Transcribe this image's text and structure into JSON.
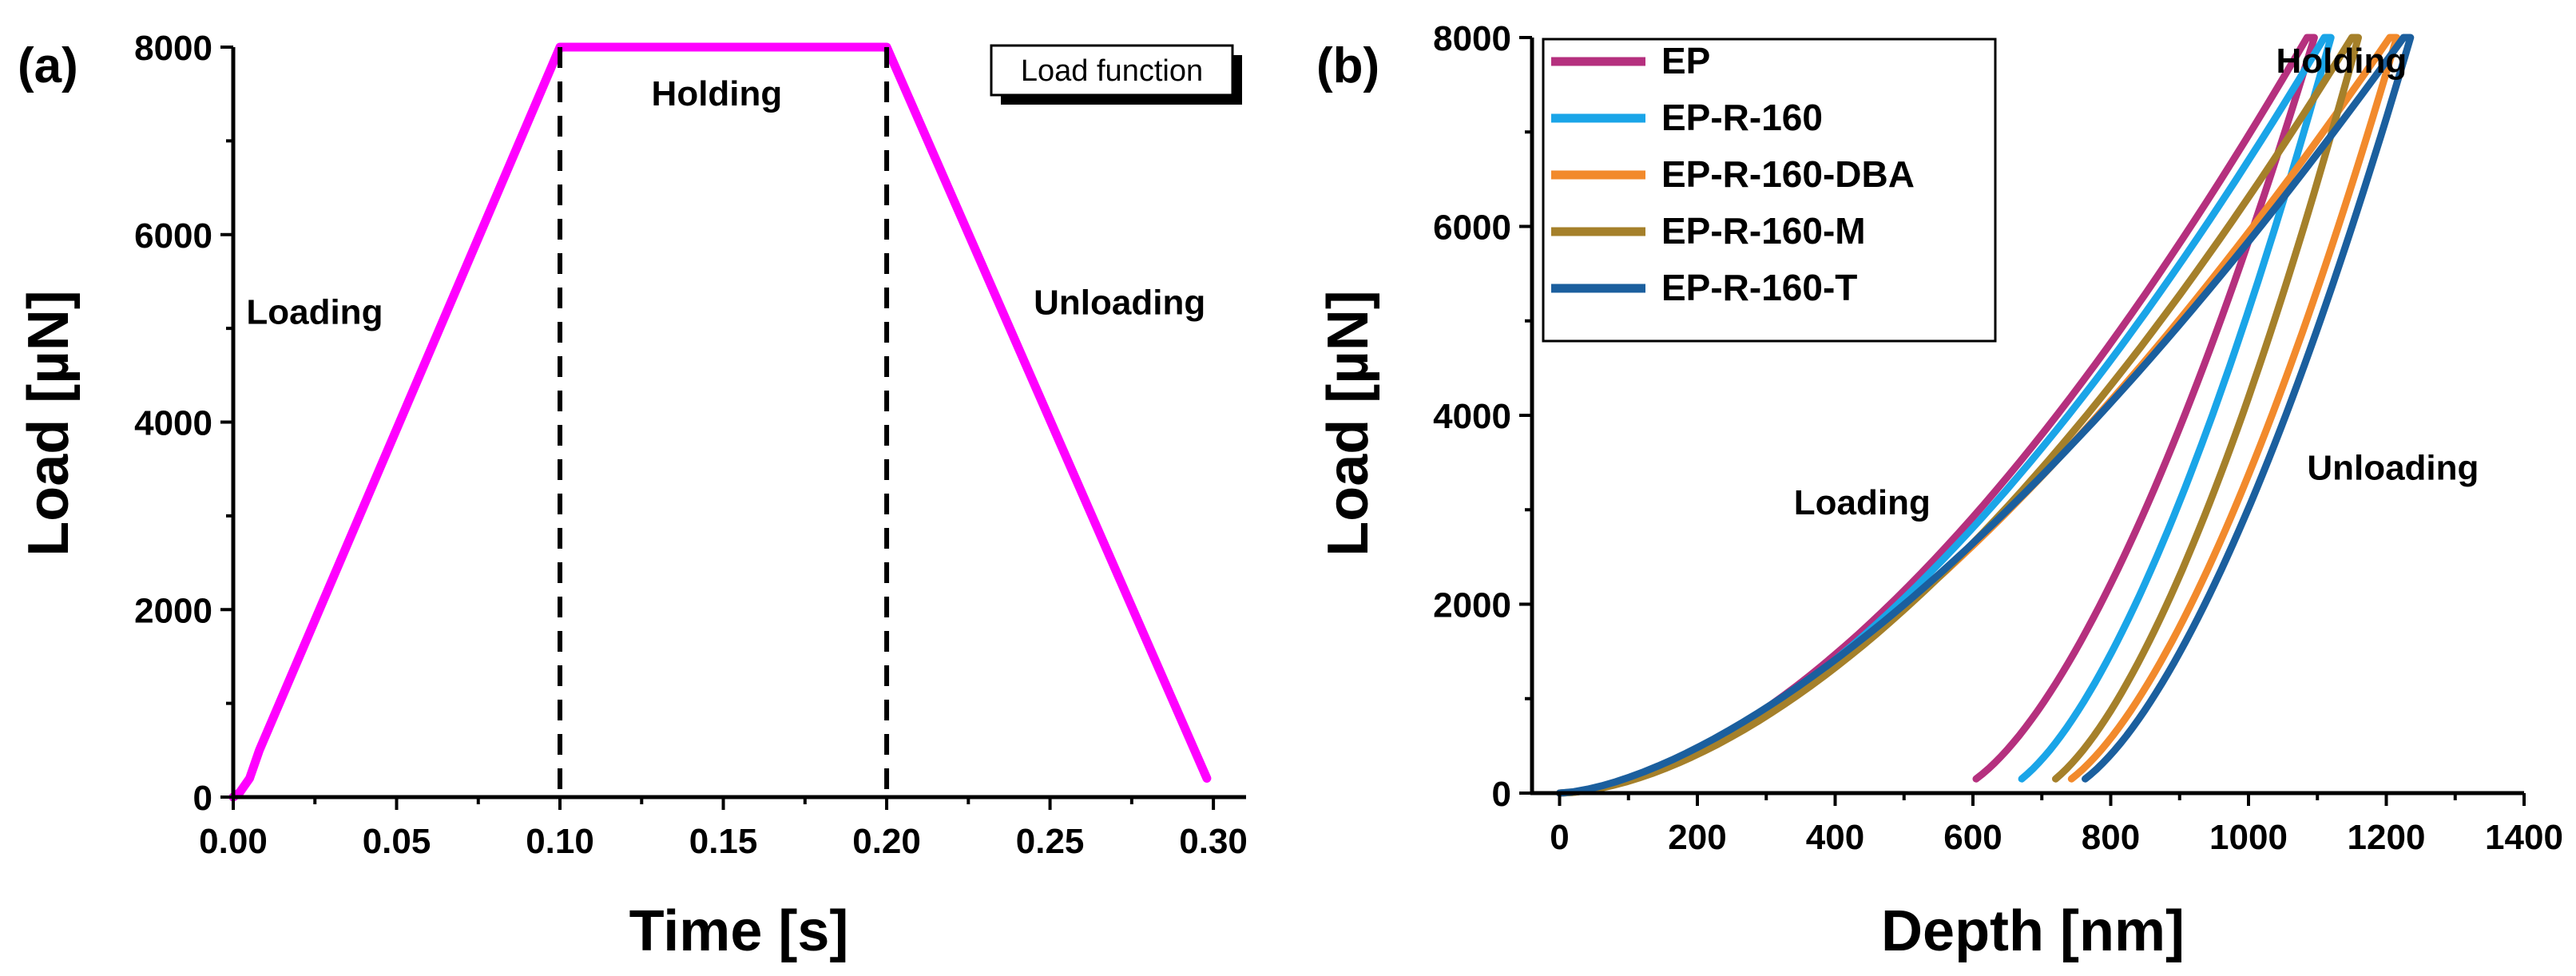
{
  "chart_data": [
    {
      "type": "line",
      "panel_label": "(a)",
      "xlabel": "Time [s]",
      "ylabel": "Load [µN]",
      "xlim": [
        0,
        0.31
      ],
      "ylim": [
        0,
        8000
      ],
      "xticks": [
        "0.00",
        "0.05",
        "0.10",
        "0.15",
        "0.20",
        "0.25",
        "0.30"
      ],
      "xtick_values": [
        0,
        0.05,
        0.1,
        0.15,
        0.2,
        0.25,
        0.3
      ],
      "yticks": [
        "0",
        "2000",
        "4000",
        "6000",
        "8000"
      ],
      "ytick_values": [
        0,
        2000,
        4000,
        6000,
        8000
      ],
      "series": [
        {
          "name": "Load function",
          "color": "#ff00ff",
          "x": [
            0,
            0.002,
            0.005,
            0.008,
            0.1,
            0.2,
            0.298
          ],
          "y": [
            0,
            50,
            200,
            500,
            8000,
            8000,
            200
          ]
        }
      ],
      "vlines": [
        0.1,
        0.2
      ],
      "legend": {
        "label": "Load function",
        "position": "top-right"
      },
      "annotations": [
        {
          "text": "Loading",
          "x": 0.004,
          "y": 5050
        },
        {
          "text": "Holding",
          "x": 0.128,
          "y": 7380
        },
        {
          "text": "Unloading",
          "x": 0.245,
          "y": 5150
        }
      ]
    },
    {
      "type": "line",
      "panel_label": "(b)",
      "xlabel": "Depth [nm]",
      "ylabel": "Load [µN]",
      "xlim": [
        -40,
        1400
      ],
      "ylim": [
        0,
        8000
      ],
      "xticks": [
        "0",
        "200",
        "400",
        "600",
        "800",
        "1000",
        "1200",
        "1400"
      ],
      "xtick_values": [
        0,
        200,
        400,
        600,
        800,
        1000,
        1200,
        1400
      ],
      "yticks": [
        "0",
        "2000",
        "4000",
        "6000",
        "8000"
      ],
      "ytick_values": [
        0,
        2000,
        4000,
        6000,
        8000
      ],
      "series": [
        {
          "name": "EP",
          "color": "#b5307e",
          "max_depth": 1085,
          "final_depth": 560,
          "loading_exp": 1.7,
          "unloading_exp": 1.6
        },
        {
          "name": "EP-R-160",
          "color": "#1aa5e8",
          "max_depth": 1110,
          "final_depth": 630,
          "loading_exp": 1.7,
          "unloading_exp": 1.6
        },
        {
          "name": "EP-R-160-DBA",
          "color": "#f28a2c",
          "max_depth": 1205,
          "final_depth": 700,
          "loading_exp": 1.6,
          "unloading_exp": 1.6
        },
        {
          "name": "EP-R-160-M",
          "color": "#a5802a",
          "max_depth": 1150,
          "final_depth": 680,
          "loading_exp": 1.7,
          "unloading_exp": 1.6
        },
        {
          "name": "EP-R-160-T",
          "color": "#1b5f9e",
          "max_depth": 1225,
          "final_depth": 720,
          "loading_exp": 1.55,
          "unloading_exp": 1.6
        }
      ],
      "legend": {
        "position": "top-left"
      },
      "annotations": [
        {
          "text": "Holding",
          "x": 1040,
          "y": 7630
        },
        {
          "text": "Loading",
          "x": 340,
          "y": 2950
        },
        {
          "text": "Unloading",
          "x": 1085,
          "y": 3320
        }
      ]
    }
  ]
}
